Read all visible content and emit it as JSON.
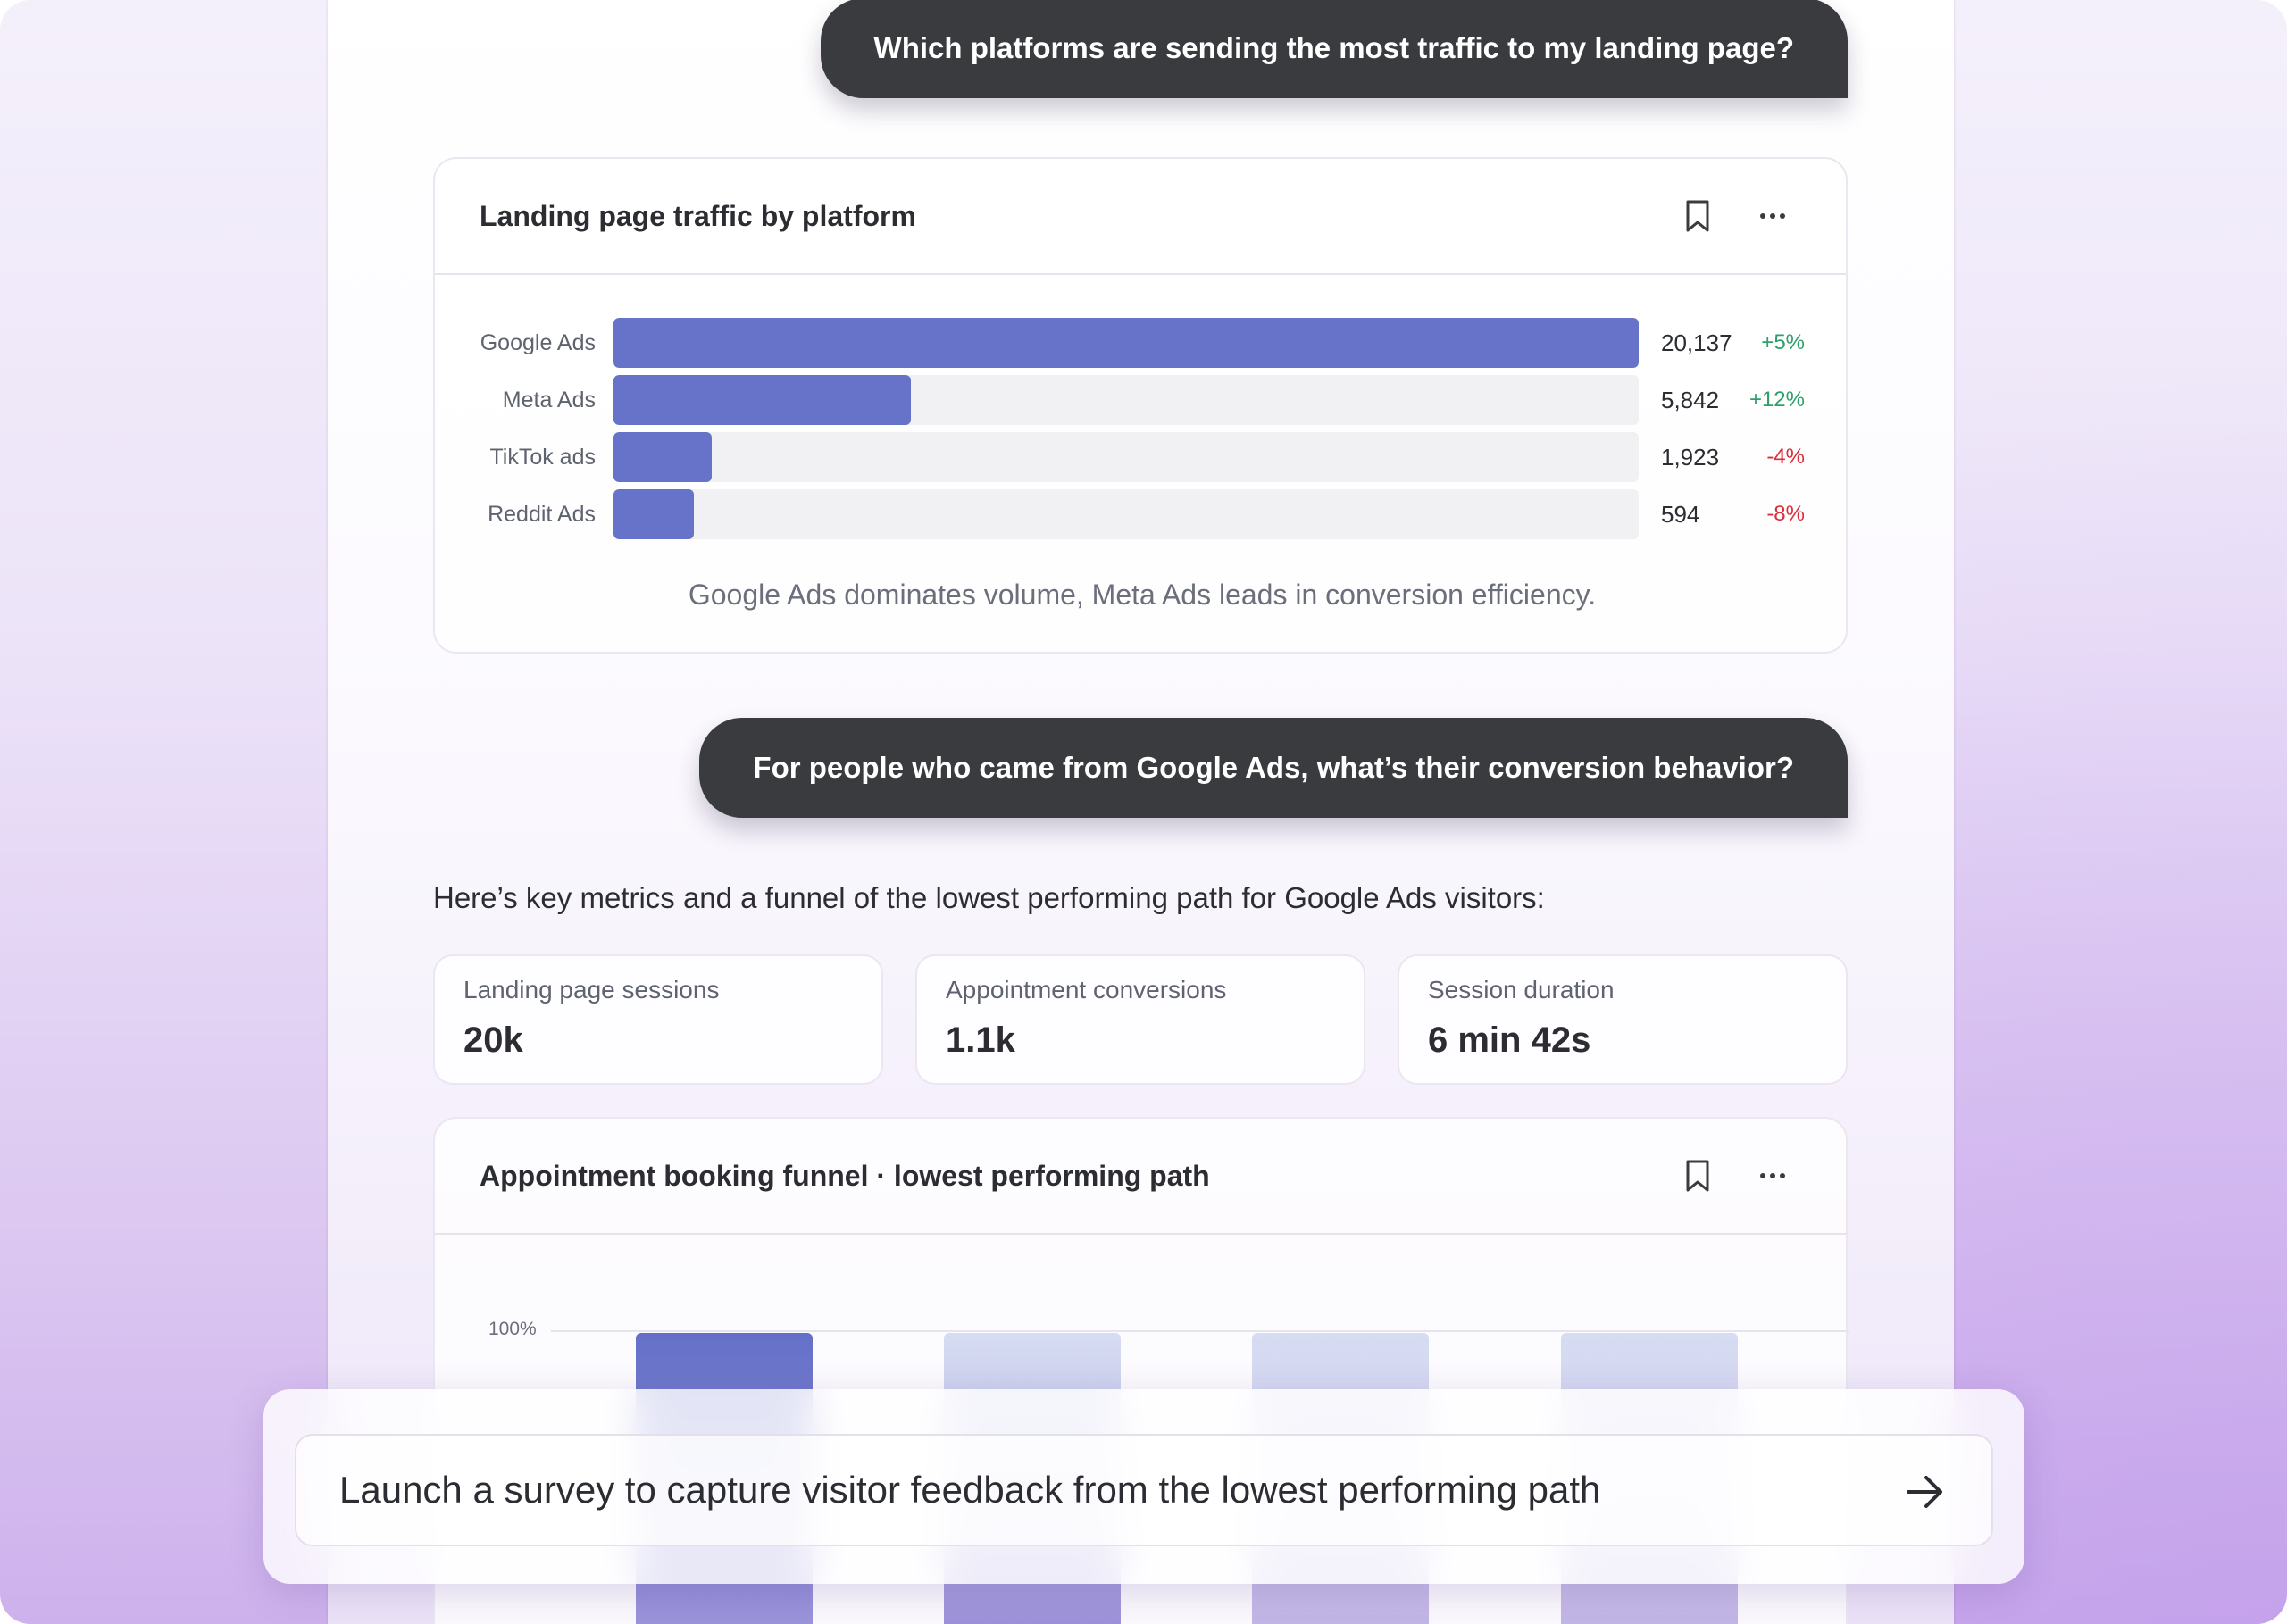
{
  "conversation": {
    "question1": "Which platforms are sending the most traffic to my landing page?",
    "question2": "For people who came from Google Ads, what’s their conversion behavior?",
    "intro": "Here’s key metrics and a funnel of the lowest performing path for Google Ads visitors:"
  },
  "traffic_card": {
    "title": "Landing page traffic by platform",
    "caption": "Google Ads dominates volume, Meta Ads leads in conversion efficiency."
  },
  "chart_data": [
    {
      "type": "bar",
      "orientation": "horizontal",
      "title": "Landing page traffic by platform",
      "categories": [
        "Google Ads",
        "Meta Ads",
        "TikTok ads",
        "Reddit Ads"
      ],
      "values": [
        20137,
        5842,
        1923,
        594
      ],
      "value_labels": [
        "20,137",
        "5,842",
        "1,923",
        "594"
      ],
      "changes": [
        "+5%",
        "+12%",
        "-4%",
        "-8%"
      ],
      "colors": {
        "bar": "#6773c9",
        "track": "#f1f1f4",
        "positive": "#2e9e6b",
        "negative": "#dc2d3a"
      }
    },
    {
      "type": "bar",
      "title": "Appointment booking funnel · lowest performing path",
      "ytick_labels": [
        "100%"
      ]
    }
  ],
  "metrics": [
    {
      "label": "Landing page sessions",
      "value": "20k"
    },
    {
      "label": "Appointment conversions",
      "value": "1.1k"
    },
    {
      "label": "Session duration",
      "value": "6 min 42s"
    }
  ],
  "funnel_card": {
    "title": "Appointment booking funnel · lowest performing path",
    "axis_label": "100%"
  },
  "composer": {
    "text": "Launch a survey to capture visitor feedback from the lowest performing path",
    "send_icon": "arrow-right-icon"
  },
  "icons": {
    "bookmark": "bookmark-icon",
    "more": "more-horizontal-icon"
  }
}
